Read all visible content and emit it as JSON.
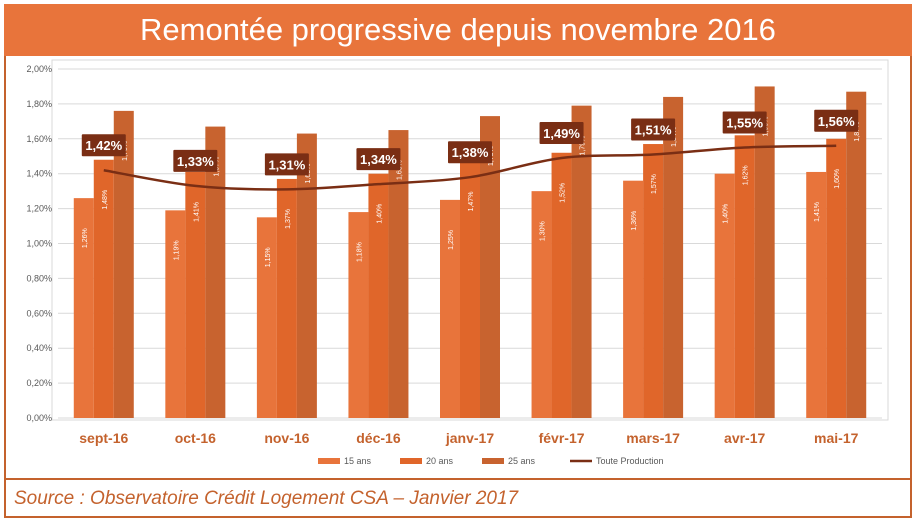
{
  "title": "Remontée progressive depuis novembre 2016",
  "source": "Source : Observatoire Crédit Logement CSA – Janvier 2017",
  "colors": {
    "series_15": "#e8743b",
    "series_20": "#e0662a",
    "series_25": "#c8632f",
    "line": "#7a2e14",
    "callout_bg": "#7a2e14",
    "category_label": "#c4622d",
    "grid": "#d9d9d9",
    "title_bg": "#e8743b"
  },
  "chart_data": {
    "type": "bar",
    "categories": [
      "sept-16",
      "oct-16",
      "nov-16",
      "déc-16",
      "janv-17",
      "févr-17",
      "mars-17",
      "avr-17",
      "mai-17"
    ],
    "series": [
      {
        "name": "15 ans",
        "values": [
          1.26,
          1.19,
          1.15,
          1.18,
          1.25,
          1.3,
          1.36,
          1.4,
          1.41
        ],
        "labels": [
          "1,26%",
          "1,19%",
          "1,15%",
          "1,18%",
          "1,25%",
          "1,30%",
          "1,36%",
          "1,40%",
          "1,41%"
        ]
      },
      {
        "name": "20 ans",
        "values": [
          1.48,
          1.41,
          1.37,
          1.4,
          1.47,
          1.52,
          1.57,
          1.62,
          1.6
        ],
        "labels": [
          "1,48%",
          "1,41%",
          "1,37%",
          "1,40%",
          "1,47%",
          "1,52%",
          "1,57%",
          "1,62%",
          "1,60%"
        ]
      },
      {
        "name": "25 ans",
        "values": [
          1.76,
          1.67,
          1.63,
          1.65,
          1.73,
          1.79,
          1.84,
          1.9,
          1.87
        ],
        "labels": [
          "1,76%",
          "1,67%",
          "1,63%",
          "1,65%",
          "1,73%",
          "1,79%",
          "1,84%",
          "1,90%",
          "1,87%"
        ]
      }
    ],
    "line_series": {
      "name": "Toute Production",
      "values": [
        1.42,
        1.33,
        1.31,
        1.34,
        1.38,
        1.49,
        1.51,
        1.55,
        1.56
      ],
      "labels": [
        "1,42%",
        "1,33%",
        "1,31%",
        "1,34%",
        "1,38%",
        "1,49%",
        "1,51%",
        "1,55%",
        "1,56%"
      ]
    },
    "ylim": [
      0,
      2.0
    ],
    "yticks": [
      "0,00%",
      "0,20%",
      "0,40%",
      "0,60%",
      "0,80%",
      "1,00%",
      "1,20%",
      "1,40%",
      "1,60%",
      "1,80%",
      "2,00%"
    ],
    "grid": true,
    "legend_position": "bottom"
  }
}
